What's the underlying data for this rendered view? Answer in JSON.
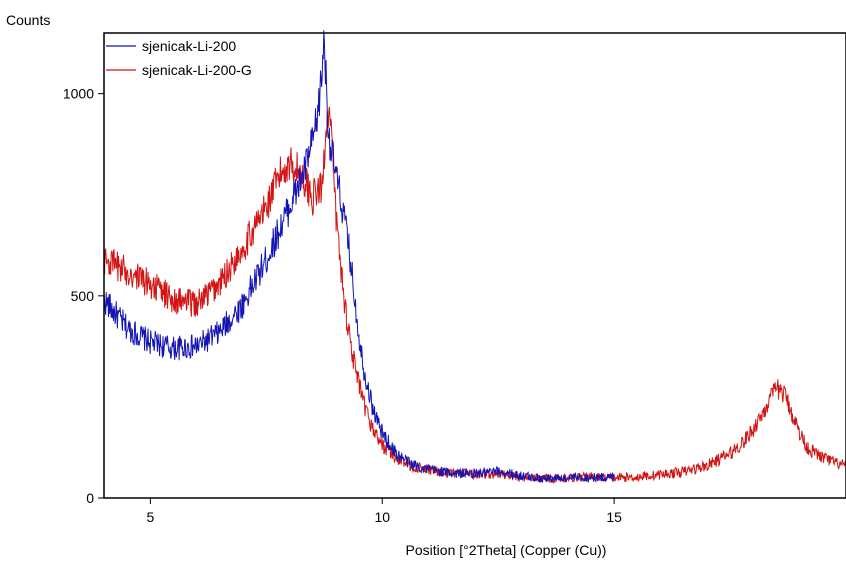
{
  "chart_data": {
    "type": "line",
    "title": "",
    "xlabel": "Position [°2Theta] (Copper (Cu))",
    "ylabel": "Counts",
    "xlim": [
      4,
      20
    ],
    "ylim": [
      0,
      1150
    ],
    "x_ticks": [
      5,
      10,
      15
    ],
    "y_ticks": [
      0,
      500,
      1000
    ],
    "grid": false,
    "legend_position": "top-left",
    "series": [
      {
        "name": "sjenicak-Li-200",
        "color": "#1414b4",
        "x": [
          4.0,
          4.5,
          5.0,
          5.5,
          6.0,
          6.5,
          7.0,
          7.5,
          8.0,
          8.3,
          8.5,
          8.6,
          8.7,
          8.75,
          8.8,
          8.85,
          8.9,
          9.0,
          9.1,
          9.2,
          9.3,
          9.4,
          9.5,
          9.6,
          9.8,
          10.0,
          10.3,
          10.6,
          11.0,
          11.5,
          12.0,
          12.5,
          13.0,
          13.5,
          14.0,
          14.5,
          15.0
        ],
        "y": [
          490,
          420,
          385,
          370,
          375,
          410,
          480,
          590,
          720,
          800,
          880,
          940,
          1050,
          1150,
          1000,
          900,
          860,
          800,
          740,
          680,
          600,
          500,
          400,
          320,
          220,
          160,
          110,
          85,
          70,
          62,
          60,
          65,
          55,
          48,
          50,
          50,
          52
        ]
      },
      {
        "name": "sjenicak-Li-200-G",
        "color": "#d21414",
        "x": [
          4.0,
          4.5,
          5.0,
          5.5,
          6.0,
          6.5,
          7.0,
          7.5,
          7.8,
          8.0,
          8.2,
          8.4,
          8.5,
          8.6,
          8.7,
          8.8,
          8.85,
          8.9,
          9.0,
          9.1,
          9.2,
          9.3,
          9.4,
          9.5,
          9.6,
          9.8,
          10.0,
          10.3,
          10.6,
          11.0,
          11.5,
          12.0,
          12.5,
          13.0,
          13.5,
          14.0,
          14.5,
          15.0,
          15.5,
          16.0,
          16.5,
          17.0,
          17.5,
          17.8,
          18.0,
          18.2,
          18.4,
          18.5,
          18.6,
          18.7,
          18.8,
          19.0,
          19.2,
          19.5,
          19.8,
          20.0
        ],
        "y": [
          590,
          560,
          530,
          490,
          480,
          530,
          620,
          720,
          800,
          830,
          810,
          770,
          740,
          760,
          760,
          940,
          960,
          900,
          700,
          580,
          470,
          400,
          330,
          280,
          230,
          170,
          130,
          100,
          80,
          68,
          62,
          58,
          60,
          52,
          48,
          50,
          52,
          50,
          52,
          58,
          65,
          80,
          110,
          140,
          170,
          210,
          250,
          270,
          265,
          250,
          220,
          160,
          120,
          100,
          85,
          80
        ]
      }
    ]
  }
}
